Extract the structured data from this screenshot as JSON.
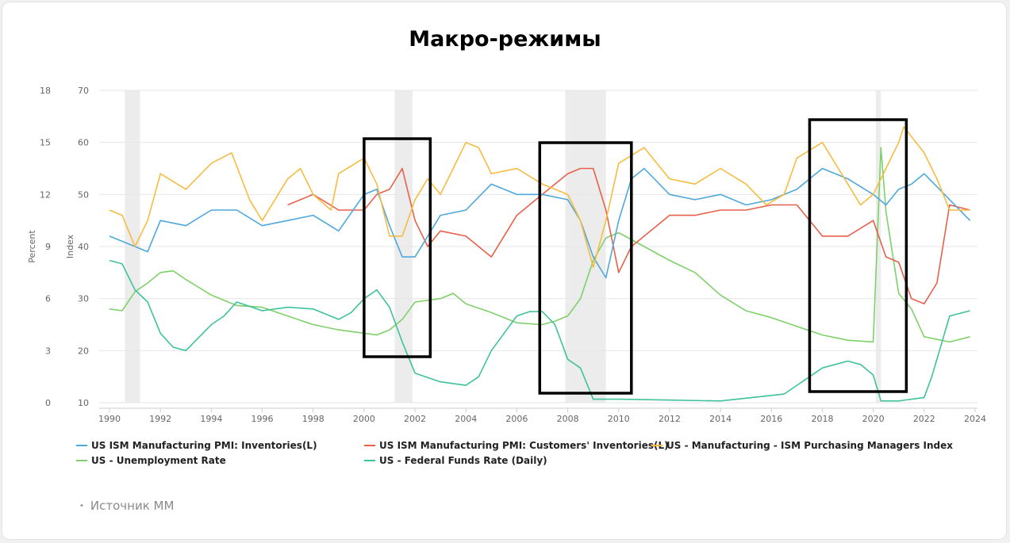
{
  "title": "Макро-режимы",
  "source": {
    "bullet": "•",
    "text": "Источник ММ"
  },
  "colors": {
    "inventories": "#4fa8dc",
    "customers": "#e8604a",
    "pmi": "#f5bc40",
    "unemployment": "#7ed06a",
    "fedfunds": "#3ec29c",
    "grid": "#e6e6e6",
    "recession": "#ececec",
    "axis_text": "#666666"
  },
  "chart_data": {
    "type": "line",
    "title": "Макро-режимы",
    "xlim": [
      1990,
      2024
    ],
    "x_ticks": [
      "1990",
      "1992",
      "1994",
      "1996",
      "1998",
      "2000",
      "2002",
      "2004",
      "2006",
      "2008",
      "2010",
      "2012",
      "2014",
      "2016",
      "2018",
      "2020",
      "2022",
      "2024"
    ],
    "y_left_outer": {
      "label": "Percent",
      "ticks": [
        "0",
        "3",
        "6",
        "9",
        "12",
        "15",
        "18"
      ],
      "lim": [
        0,
        18
      ]
    },
    "y_left_inner": {
      "label": "Index",
      "ticks": [
        "10",
        "20",
        "30",
        "40",
        "50",
        "60",
        "70"
      ],
      "lim": [
        10,
        70
      ]
    },
    "grid": true,
    "legend_position": "bottom",
    "recession_bands": [
      [
        1990.6,
        1991.2
      ],
      [
        2001.2,
        2001.9
      ],
      [
        2007.9,
        2009.5
      ],
      [
        2020.1,
        2020.3
      ]
    ],
    "highlight_boxes": [
      [
        2000.0,
        2002.6
      ],
      [
        2006.9,
        2010.5
      ],
      [
        2017.5,
        2021.3
      ]
    ],
    "series": [
      {
        "name": "US ISM Manufacturing PMI: Inventories(L)",
        "axis": "index",
        "color_key": "inventories",
        "x": [
          1990,
          1990.5,
          1991,
          1991.5,
          1992,
          1993,
          1994,
          1995,
          1996,
          1997,
          1998,
          1999,
          2000,
          2000.5,
          2001,
          2001.5,
          2002,
          2002.5,
          2003,
          2004,
          2005,
          2006,
          2007,
          2008,
          2008.5,
          2009,
          2009.5,
          2010,
          2010.5,
          2011,
          2012,
          2013,
          2014,
          2015,
          2016,
          2017,
          2017.5,
          2018,
          2019,
          2020,
          2020.5,
          2021,
          2021.5,
          2022,
          2023,
          2023.8
        ],
        "y": [
          42,
          41,
          40,
          39,
          45,
          44,
          47,
          47,
          44,
          45,
          46,
          43,
          50,
          51,
          44,
          38,
          38,
          42,
          46,
          47,
          52,
          50,
          50,
          49,
          45,
          38,
          34,
          45,
          53,
          55,
          50,
          49,
          50,
          48,
          49,
          51,
          53,
          55,
          53,
          50,
          48,
          51,
          52,
          54,
          49,
          45
        ]
      },
      {
        "name": "US ISM Manufacturing PMI: Customers' Inventories(L)",
        "axis": "index",
        "color_key": "customers",
        "x": [
          1997,
          1998,
          1999,
          2000,
          2000.5,
          2001,
          2001.5,
          2002,
          2002.5,
          2003,
          2004,
          2005,
          2006,
          2007,
          2007.5,
          2008,
          2008.5,
          2009,
          2009.5,
          2010,
          2010.5,
          2011,
          2012,
          2013,
          2014,
          2015,
          2016,
          2017,
          2018,
          2019,
          2020,
          2020.5,
          2021,
          2021.5,
          2022,
          2022.5,
          2023,
          2023.8
        ],
        "y": [
          48,
          50,
          47,
          47,
          50,
          51,
          55,
          45,
          40,
          43,
          42,
          38,
          46,
          50,
          52,
          54,
          55,
          55,
          47,
          35,
          40,
          42,
          46,
          46,
          47,
          47,
          48,
          48,
          42,
          42,
          45,
          38,
          37,
          30,
          29,
          33,
          48,
          47
        ]
      },
      {
        "name": "US - Manufacturing - ISM Purchasing Managers Index",
        "axis": "index",
        "color_key": "pmi",
        "x": [
          1990,
          1990.5,
          1991,
          1991.5,
          1992,
          1993,
          1994,
          1994.8,
          1995.5,
          1996,
          1997,
          1997.5,
          1998,
          1998.7,
          1999,
          2000,
          2000.5,
          2001,
          2001.5,
          2002,
          2002.5,
          2003,
          2003.5,
          2004,
          2004.5,
          2005,
          2006,
          2007,
          2008,
          2008.5,
          2009,
          2009.5,
          2010,
          2011,
          2012,
          2013,
          2014,
          2015,
          2015.8,
          2016.5,
          2017,
          2018,
          2019,
          2019.5,
          2020,
          2020.5,
          2021,
          2021.2,
          2022,
          2022.5,
          2023,
          2023.8
        ],
        "y": [
          47,
          46,
          40,
          45,
          54,
          51,
          56,
          58,
          49,
          45,
          53,
          55,
          50,
          47,
          54,
          57,
          52,
          42,
          42,
          49,
          53,
          50,
          55,
          60,
          59,
          54,
          55,
          52,
          50,
          45,
          36,
          45,
          56,
          59,
          53,
          52,
          55,
          52,
          48,
          50,
          57,
          60,
          52,
          48,
          50,
          55,
          60,
          63,
          58,
          53,
          47,
          47
        ]
      },
      {
        "name": "US - Unemployment Rate",
        "axis": "percent",
        "color_key": "unemployment",
        "x": [
          1990,
          1990.5,
          1991,
          1991.5,
          1992,
          1992.5,
          1993,
          1994,
          1995,
          1996,
          1997,
          1998,
          1999,
          2000,
          2000.5,
          2001,
          2001.5,
          2002,
          2003,
          2003.5,
          2004,
          2005,
          2006,
          2007,
          2007.5,
          2008,
          2008.5,
          2009,
          2009.5,
          2010,
          2011,
          2012,
          2013,
          2014,
          2015,
          2016,
          2017,
          2018,
          2019,
          2020,
          2020.3,
          2020.5,
          2021,
          2021.5,
          2022,
          2023,
          2023.8
        ],
        "y": [
          5.4,
          5.3,
          6.4,
          6.9,
          7.5,
          7.6,
          7.1,
          6.2,
          5.6,
          5.5,
          5,
          4.5,
          4.2,
          4.0,
          3.9,
          4.2,
          4.8,
          5.8,
          6.0,
          6.3,
          5.7,
          5.2,
          4.6,
          4.5,
          4.7,
          5.0,
          6.0,
          8.2,
          9.5,
          9.8,
          9.0,
          8.2,
          7.5,
          6.2,
          5.3,
          4.9,
          4.4,
          3.9,
          3.6,
          3.5,
          14.7,
          11.0,
          6.3,
          5.4,
          3.8,
          3.5,
          3.8
        ]
      },
      {
        "name": "US - Federal Funds Rate (Daily)",
        "axis": "percent",
        "color_key": "fedfunds",
        "x": [
          1990,
          1990.5,
          1991,
          1991.5,
          1992,
          1992.5,
          1993,
          1994,
          1994.5,
          1995,
          1996,
          1997,
          1998,
          1999,
          1999.5,
          2000,
          2000.5,
          2001,
          2001.5,
          2002,
          2003,
          2004,
          2004.5,
          2005,
          2006,
          2006.5,
          2007,
          2007.5,
          2008,
          2008.5,
          2009,
          2010,
          2012,
          2014,
          2015.9,
          2016.5,
          2017,
          2018,
          2019,
          2019.5,
          2020,
          2020.3,
          2021,
          2022,
          2022.3,
          2022.6,
          2023,
          2023.8
        ],
        "y": [
          8.2,
          8.0,
          6.5,
          5.8,
          4.0,
          3.2,
          3.0,
          4.5,
          5.0,
          5.8,
          5.3,
          5.5,
          5.4,
          4.8,
          5.2,
          6.0,
          6.5,
          5.5,
          3.5,
          1.7,
          1.2,
          1.0,
          1.5,
          3.0,
          5.0,
          5.25,
          5.25,
          4.5,
          2.5,
          2.0,
          0.2,
          0.2,
          0.15,
          0.1,
          0.4,
          0.5,
          1.0,
          2.0,
          2.4,
          2.2,
          1.6,
          0.1,
          0.1,
          0.3,
          1.5,
          3.0,
          5.0,
          5.3
        ]
      }
    ]
  }
}
